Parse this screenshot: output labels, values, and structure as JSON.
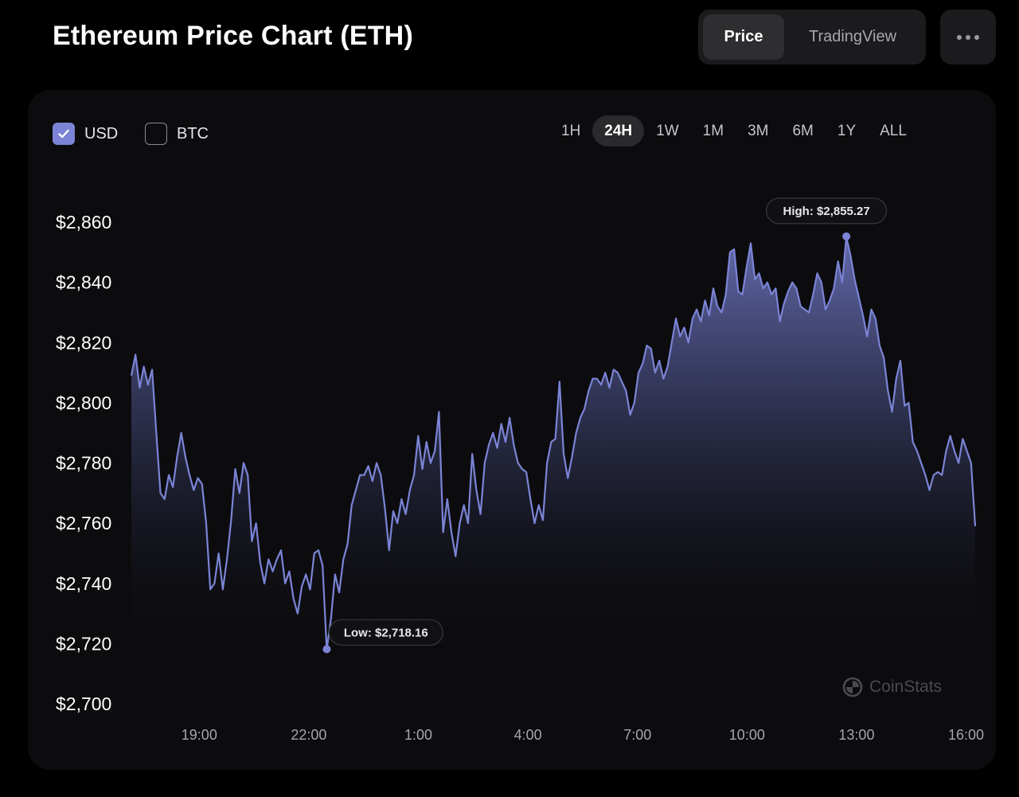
{
  "header": {
    "title": "Ethereum Price Chart (ETH)",
    "tabs": [
      {
        "label": "Price",
        "active": true
      },
      {
        "label": "TradingView",
        "active": false
      }
    ],
    "more_icon": "more-horizontal-icon"
  },
  "currency": {
    "usd_label": "USD",
    "usd_checked": true,
    "btc_label": "BTC",
    "btc_checked": false
  },
  "ranges": [
    {
      "label": "1H",
      "active": false
    },
    {
      "label": "24H",
      "active": true
    },
    {
      "label": "1W",
      "active": false
    },
    {
      "label": "1M",
      "active": false
    },
    {
      "label": "3M",
      "active": false
    },
    {
      "label": "6M",
      "active": false
    },
    {
      "label": "1Y",
      "active": false
    },
    {
      "label": "ALL",
      "active": false
    }
  ],
  "watermark": "CoinStats",
  "colors": {
    "line": "#7b84d6",
    "background": "#000000",
    "card": "#0c0c0e"
  },
  "chart_data": {
    "type": "area",
    "title": "Ethereum Price Chart (ETH)",
    "currency": "USD",
    "xlabel": "",
    "ylabel": "",
    "x_start_hour": 17.14,
    "x_end_hour": 40.25,
    "xticks": [
      {
        "label": "19:00",
        "hour": 19
      },
      {
        "label": "22:00",
        "hour": 22
      },
      {
        "label": "1:00",
        "hour": 25
      },
      {
        "label": "4:00",
        "hour": 28
      },
      {
        "label": "7:00",
        "hour": 31
      },
      {
        "label": "10:00",
        "hour": 34
      },
      {
        "label": "13:00",
        "hour": 37
      },
      {
        "label": "16:00",
        "hour": 40
      }
    ],
    "ylim": [
      2700,
      2860
    ],
    "yticks": [
      {
        "label": "$2,860",
        "value": 2860
      },
      {
        "label": "$2,840",
        "value": 2840
      },
      {
        "label": "$2,820",
        "value": 2820
      },
      {
        "label": "$2,800",
        "value": 2800
      },
      {
        "label": "$2,780",
        "value": 2780
      },
      {
        "label": "$2,760",
        "value": 2760
      },
      {
        "label": "$2,740",
        "value": 2740
      },
      {
        "label": "$2,720",
        "value": 2720
      },
      {
        "label": "$2,700",
        "value": 2700
      }
    ],
    "annotations": {
      "high": {
        "label": "High: $2,855.27",
        "value": 2855.27
      },
      "low": {
        "label": "Low: $2,718.16",
        "value": 2718.16
      }
    },
    "values": [
      2809,
      2816,
      2805,
      2812,
      2806,
      2811,
      2790,
      2770,
      2768,
      2776,
      2772,
      2782,
      2790,
      2782,
      2776,
      2771,
      2775,
      2773,
      2760,
      2738,
      2740,
      2750,
      2738,
      2748,
      2761,
      2778,
      2770,
      2780,
      2776,
      2754,
      2760,
      2747,
      2740,
      2748,
      2744,
      2748,
      2751,
      2740,
      2744,
      2735,
      2730,
      2739,
      2743,
      2738,
      2750,
      2751,
      2746,
      2718,
      2728,
      2743,
      2737,
      2748,
      2753,
      2766,
      2771,
      2776,
      2776,
      2779,
      2774,
      2780,
      2776,
      2765,
      2751,
      2764,
      2760,
      2768,
      2763,
      2771,
      2776,
      2789,
      2778,
      2787,
      2780,
      2784,
      2797,
      2757,
      2768,
      2757,
      2749,
      2760,
      2766,
      2760,
      2783,
      2771,
      2763,
      2780,
      2786,
      2790,
      2785,
      2793,
      2787,
      2795,
      2786,
      2780,
      2778,
      2777,
      2768,
      2760,
      2766,
      2761,
      2780,
      2787,
      2788,
      2807,
      2783,
      2775,
      2782,
      2790,
      2795,
      2798,
      2804,
      2808,
      2808,
      2806,
      2810,
      2805,
      2811,
      2810,
      2807,
      2804,
      2796,
      2800,
      2810,
      2813,
      2819,
      2818,
      2810,
      2814,
      2808,
      2812,
      2820,
      2828,
      2822,
      2825,
      2820,
      2828,
      2831,
      2827,
      2834,
      2829,
      2838,
      2832,
      2830,
      2836,
      2850,
      2851,
      2837,
      2836,
      2845,
      2853,
      2841,
      2843,
      2838,
      2840,
      2836,
      2838,
      2827,
      2833,
      2837,
      2840,
      2838,
      2832,
      2831,
      2830,
      2836,
      2843,
      2840,
      2831,
      2834,
      2838,
      2847,
      2840,
      2855,
      2849,
      2841,
      2835,
      2829,
      2822,
      2831,
      2828,
      2819,
      2815,
      2804,
      2797,
      2808,
      2814,
      2799,
      2800,
      2787,
      2784,
      2780,
      2776,
      2771,
      2776,
      2777,
      2776,
      2784,
      2789,
      2784,
      2780,
      2788,
      2784,
      2780,
      2759
    ]
  }
}
